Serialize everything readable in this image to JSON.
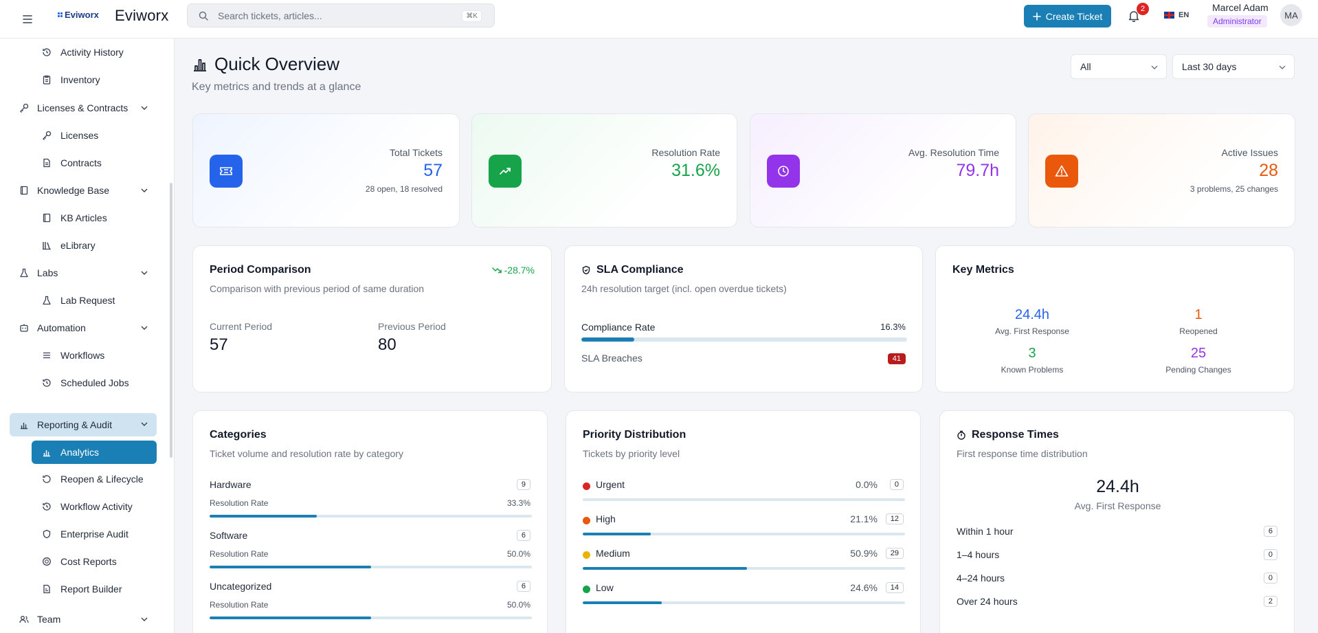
{
  "topbar": {
    "logo_small": "Eviworx",
    "brand": "Eviworx",
    "search_placeholder": "Search tickets, articles...",
    "search_shortcut": "⌘K",
    "create_ticket_label": "Create Ticket",
    "notification_count": "2",
    "language": "EN",
    "user_name": "Marcel Adam",
    "user_role": "Administrator",
    "user_initials": "MA"
  },
  "sidebar": {
    "items": [
      {
        "label": "Activity History",
        "icon": "history-icon",
        "type": "child"
      },
      {
        "label": "Inventory",
        "icon": "clipboard-icon",
        "type": "child"
      },
      {
        "label": "Licenses & Contracts",
        "icon": "key-icon",
        "type": "group"
      },
      {
        "label": "Licenses",
        "icon": "key-icon",
        "type": "child"
      },
      {
        "label": "Contracts",
        "icon": "document-icon",
        "type": "child"
      },
      {
        "label": "Knowledge Base",
        "icon": "book-icon",
        "type": "group"
      },
      {
        "label": "KB Articles",
        "icon": "book-icon",
        "type": "child"
      },
      {
        "label": "eLibrary",
        "icon": "library-icon",
        "type": "child"
      },
      {
        "label": "Labs",
        "icon": "flask-icon",
        "type": "group"
      },
      {
        "label": "Lab Request",
        "icon": "flask-icon",
        "type": "child"
      },
      {
        "label": "Automation",
        "icon": "bot-icon",
        "type": "group"
      },
      {
        "label": "Workflows",
        "icon": "list-icon",
        "type": "child"
      },
      {
        "label": "Scheduled Jobs",
        "icon": "history-icon",
        "type": "child"
      },
      {
        "label": "Reporting & Audit",
        "icon": "chart-icon",
        "type": "group-open"
      },
      {
        "label": "Analytics",
        "icon": "chart-icon",
        "type": "child-active"
      },
      {
        "label": "Reopen & Lifecycle",
        "icon": "refresh-icon",
        "type": "child"
      },
      {
        "label": "Workflow Activity",
        "icon": "history-icon",
        "type": "child"
      },
      {
        "label": "Enterprise Audit",
        "icon": "shield-icon",
        "type": "child"
      },
      {
        "label": "Cost Reports",
        "icon": "coin-icon",
        "type": "child"
      },
      {
        "label": "Report Builder",
        "icon": "report-icon",
        "type": "child"
      },
      {
        "label": "Team",
        "icon": "users-icon",
        "type": "group"
      }
    ]
  },
  "header": {
    "title": "Quick Overview",
    "subtitle": "Key metrics and trends at a glance",
    "filter_value": "All",
    "period_value": "Last 30 days"
  },
  "stats": [
    {
      "label": "Total Tickets",
      "value": "57",
      "note": "28 open, 18 resolved",
      "color": "#2563eb",
      "icon": "ticket-icon"
    },
    {
      "label": "Resolution Rate",
      "value": "31.6%",
      "note": "",
      "color": "#16a34a",
      "icon": "trending-up-icon"
    },
    {
      "label": "Avg. Resolution Time",
      "value": "79.7h",
      "note": "",
      "color": "#9333ea",
      "icon": "clock-icon"
    },
    {
      "label": "Active Issues",
      "value": "28",
      "note": "3 problems, 25 changes",
      "color": "#ea580c",
      "icon": "warning-icon"
    }
  ],
  "period_comparison": {
    "title": "Period Comparison",
    "subtitle": "Comparison with previous period of same duration",
    "trend": "-28.7%",
    "current_label": "Current Period",
    "current_value": "57",
    "previous_label": "Previous Period",
    "previous_value": "80"
  },
  "sla": {
    "title": "SLA Compliance",
    "subtitle": "24h resolution target (incl. open overdue tickets)",
    "compliance_label": "Compliance Rate",
    "compliance_value": "16.3%",
    "compliance_fraction": 0.163,
    "breaches_label": "SLA Breaches",
    "breaches_value": "41"
  },
  "key_metrics": {
    "title": "Key Metrics",
    "items": [
      {
        "value": "24.4h",
        "label": "Avg. First Response",
        "color": "#2563eb"
      },
      {
        "value": "1",
        "label": "Reopened",
        "color": "#ea580c"
      },
      {
        "value": "3",
        "label": "Known Problems",
        "color": "#16a34a"
      },
      {
        "value": "25",
        "label": "Pending Changes",
        "color": "#9333ea"
      }
    ]
  },
  "categories": {
    "title": "Categories",
    "subtitle": "Ticket volume and resolution rate by category",
    "sublabel": "Resolution Rate",
    "items": [
      {
        "name": "Hardware",
        "count": "9",
        "rate": "33.3%",
        "fraction": 0.333
      },
      {
        "name": "Software",
        "count": "6",
        "rate": "50.0%",
        "fraction": 0.5
      },
      {
        "name": "Uncategorized",
        "count": "6",
        "rate": "50.0%",
        "fraction": 0.5
      }
    ]
  },
  "priority": {
    "title": "Priority Distribution",
    "subtitle": "Tickets by priority level",
    "items": [
      {
        "name": "Urgent",
        "pct": "0.0%",
        "count": "0",
        "fraction": 0.0,
        "color": "#dc2626"
      },
      {
        "name": "High",
        "pct": "21.1%",
        "count": "12",
        "fraction": 0.211,
        "color": "#ea580c"
      },
      {
        "name": "Medium",
        "pct": "50.9%",
        "count": "29",
        "fraction": 0.509,
        "color": "#eab308"
      },
      {
        "name": "Low",
        "pct": "24.6%",
        "count": "14",
        "fraction": 0.246,
        "color": "#16a34a"
      }
    ]
  },
  "response_times": {
    "title": "Response Times",
    "subtitle": "First response time distribution",
    "avg_value": "24.4h",
    "avg_label": "Avg. First Response",
    "buckets": [
      {
        "label": "Within 1 hour",
        "count": "6"
      },
      {
        "label": "1–4 hours",
        "count": "0"
      },
      {
        "label": "4–24 hours",
        "count": "0"
      },
      {
        "label": "Over 24 hours",
        "count": "2"
      }
    ]
  }
}
